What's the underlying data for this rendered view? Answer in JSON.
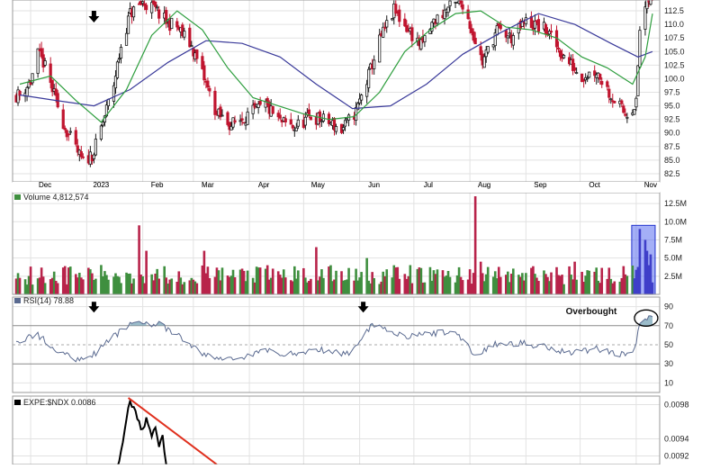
{
  "chart_data": [
    {
      "type": "candlestick",
      "panel": "price",
      "x_months": [
        "Dec",
        "2023",
        "Feb",
        "Mar",
        "Apr",
        "May",
        "Jun",
        "Jul",
        "Aug",
        "Sep",
        "Oct",
        "Nov"
      ],
      "y_ticks": [
        "82.5",
        "85.0",
        "87.5",
        "90.0",
        "92.5",
        "95.0",
        "97.5",
        "100.0",
        "102.5",
        "105.0",
        "107.5",
        "110.0",
        "112.5"
      ],
      "ylim": [
        81.0,
        114.5
      ],
      "series_colors": {
        "up": "#2e7d2e",
        "down": "#c0152f",
        "ma_short": "#2e9e3e",
        "ma_long": "#3a3a9a"
      },
      "annotations": [
        {
          "type": "down-arrow",
          "month": "2023",
          "offset_days": 4,
          "near_value": 113
        }
      ],
      "close_path": [
        [
          "Nov 25 2022",
          97.0
        ],
        [
          "Dec 1 2022",
          99.5
        ],
        [
          "Dec 5 2022",
          104.5
        ],
        [
          "Dec 8 2022",
          103.0
        ],
        [
          "Dec 12 2022",
          99.0
        ],
        [
          "Dec 16 2022",
          95.0
        ],
        [
          "Dec 20 2022",
          91.0
        ],
        [
          "Dec 26 2022",
          87.0
        ],
        [
          "Dec 30 2022",
          84.5
        ],
        [
          "Jan 5 2023",
          86.5
        ],
        [
          "Jan 10 2023",
          92.0
        ],
        [
          "Jan 16 2023",
          99.0
        ],
        [
          "Jan 20 2023",
          106.0
        ],
        [
          "Jan 25 2023",
          112.0
        ],
        [
          "Feb 1 2023",
          114.0
        ],
        [
          "Feb 7 2023",
          113.0
        ],
        [
          "Feb 14 2023",
          110.5
        ],
        [
          "Feb 20 2023",
          109.5
        ],
        [
          "Feb 28 2023",
          106.0
        ],
        [
          "Mar 7 2023",
          100.0
        ],
        [
          "Mar 14 2023",
          93.5
        ],
        [
          "Mar 22 2023",
          91.5
        ],
        [
          "Apr 1 2023",
          93.5
        ],
        [
          "Apr 10 2023",
          95.0
        ],
        [
          "Apr 18 2023",
          92.0
        ],
        [
          "Apr 26 2023",
          91.0
        ],
        [
          "May 5 2023",
          93.0
        ],
        [
          "May 15 2023",
          92.0
        ],
        [
          "May 22 2023",
          90.5
        ],
        [
          "May 30 2023",
          94.0
        ],
        [
          "Jun 5 2023",
          99.5
        ],
        [
          "Jun 12 2023",
          107.0
        ],
        [
          "Jun 20 2023",
          112.5
        ],
        [
          "Jun 28 2023",
          109.0
        ],
        [
          "Jul 5 2023",
          106.0
        ],
        [
          "Jul 12 2023",
          110.5
        ],
        [
          "Jul 20 2023",
          113.0
        ],
        [
          "Jul 28 2023",
          114.0
        ],
        [
          "Aug 3 2023",
          108.0
        ],
        [
          "Aug 8 2023",
          103.0
        ],
        [
          "Aug 16 2023",
          109.0
        ],
        [
          "Aug 24 2023",
          107.5
        ],
        [
          "Sep 1 2023",
          110.5
        ],
        [
          "Sep 12 2023",
          109.0
        ],
        [
          "Sep 22 2023",
          104.0
        ],
        [
          "Oct 2 2023",
          100.5
        ],
        [
          "Oct 10 2023",
          101.5
        ],
        [
          "Oct 18 2023",
          97.0
        ],
        [
          "Oct 26 2023",
          93.5
        ],
        [
          "Nov 1 2023",
          95.5
        ],
        [
          "Nov 3 2023",
          109.0
        ],
        [
          "Nov 6 2023",
          113.0
        ],
        [
          "Nov 8 2023",
          114.5
        ]
      ],
      "ma_short": [
        [
          "Nov 25 2022",
          99.0
        ],
        [
          "Dec 12 2022",
          100.5
        ],
        [
          "Dec 26 2022",
          96.0
        ],
        [
          "Jan 9 2023",
          92.0
        ],
        [
          "Jan 23 2023",
          98.0
        ],
        [
          "Feb 6 2023",
          108.0
        ],
        [
          "Feb 20 2023",
          112.5
        ],
        [
          "Mar 6 2023",
          109.0
        ],
        [
          "Mar 20 2023",
          102.0
        ],
        [
          "Apr 3 2023",
          96.5
        ],
        [
          "Apr 17 2023",
          95.0
        ],
        [
          "May 1 2023",
          93.5
        ],
        [
          "May 15 2023",
          92.5
        ],
        [
          "May 29 2023",
          93.0
        ],
        [
          "Jun 12 2023",
          97.5
        ],
        [
          "Jun 26 2023",
          105.0
        ],
        [
          "Jul 10 2023",
          109.0
        ],
        [
          "Jul 24 2023",
          112.0
        ],
        [
          "Aug 7 2023",
          112.5
        ],
        [
          "Aug 21 2023",
          109.5
        ],
        [
          "Sep 4 2023",
          109.0
        ],
        [
          "Sep 18 2023",
          107.5
        ],
        [
          "Oct 2 2023",
          104.0
        ],
        [
          "Oct 16 2023",
          102.0
        ],
        [
          "Oct 30 2023",
          99.0
        ],
        [
          "Nov 6 2023",
          104.0
        ],
        [
          "Nov 10 2023",
          112.0
        ]
      ],
      "ma_long": [
        [
          "Nov 25 2022",
          97.0
        ],
        [
          "Dec 15 2022",
          96.0
        ],
        [
          "Jan 5 2023",
          95.0
        ],
        [
          "Jan 25 2023",
          98.0
        ],
        [
          "Feb 15 2023",
          103.0
        ],
        [
          "Mar 8 2023",
          107.0
        ],
        [
          "Mar 28 2023",
          106.5
        ],
        [
          "Apr 18 2023",
          104.0
        ],
        [
          "May 8 2023",
          99.0
        ],
        [
          "May 28 2023",
          94.5
        ],
        [
          "Jun 18 2023",
          95.0
        ],
        [
          "Jul 8 2023",
          99.0
        ],
        [
          "Jul 28 2023",
          104.5
        ],
        [
          "Aug 18 2023",
          108.5
        ],
        [
          "Sep 8 2023",
          112.0
        ],
        [
          "Sep 28 2023",
          110.0
        ],
        [
          "Oct 18 2023",
          106.5
        ],
        [
          "Nov 2 2023",
          104.0
        ],
        [
          "Nov 10 2023",
          105.0
        ]
      ]
    },
    {
      "type": "bar",
      "panel": "volume",
      "label": "Volume 4,812,574",
      "y_ticks": [
        "2.5M",
        "5.0M",
        "7.5M",
        "10.0M",
        "12.5M"
      ],
      "ylim": [
        0,
        14.0
      ],
      "series_colors": {
        "up": "#3f8f3f",
        "down": "#b8234a",
        "highlight_fill": "#5a6ef0",
        "highlight_stroke": "#2233cc",
        "recent_bars": "#3f3fc9"
      },
      "highlight_range": [
        "Oct 31 2023",
        "Nov 10 2023"
      ],
      "spikes": [
        [
          "Jan 30 2023",
          9.5
        ],
        [
          "Feb 3 2023",
          6.0
        ],
        [
          "Mar 7 2023",
          6.0
        ],
        [
          "May 8 2023",
          6.5
        ],
        [
          "Jun 5 2023",
          5.0
        ],
        [
          "Aug 4 2023",
          13.5
        ],
        [
          "Aug 7 2023",
          4.5
        ],
        [
          "Sep 28 2023",
          4.5
        ],
        [
          "Nov 3 2023",
          9.0
        ],
        [
          "Nov 6 2023",
          7.5
        ],
        [
          "Nov 7 2023",
          6.0
        ],
        [
          "Nov 9 2023",
          5.5
        ]
      ],
      "base_level": 3.0
    },
    {
      "type": "line",
      "panel": "rsi",
      "label": "RSI(14) 78.88",
      "y_ticks": [
        "10",
        "30",
        "50",
        "70",
        "90"
      ],
      "ylim": [
        0,
        100
      ],
      "reference_lines": [
        30,
        50,
        70
      ],
      "series_colors": {
        "line": "#5a6a90",
        "overbought_fill": "#7aa5b8"
      },
      "annotations": [
        {
          "type": "down-arrow",
          "month": "2023",
          "offset_days": 4
        },
        {
          "type": "down-arrow",
          "month": "Jun",
          "offset_days": 2
        },
        {
          "type": "text",
          "text": "Overbought"
        },
        {
          "type": "ellipse",
          "range": [
            "Oct 31 2023",
            "Nov 10 2023"
          ],
          "value": 78
        }
      ],
      "path": [
        [
          "Nov 25 2022",
          55
        ],
        [
          "Dec 5 2022",
          60
        ],
        [
          "Dec 15 2022",
          45
        ],
        [
          "Dec 25 2022",
          35
        ],
        [
          "Jan 5 2023",
          40
        ],
        [
          "Jan 18 2023",
          62
        ],
        [
          "Jan 28 2023",
          75
        ],
        [
          "Feb 10 2023",
          71
        ],
        [
          "Feb 20 2023",
          60
        ],
        [
          "Mar 5 2023",
          42
        ],
        [
          "Mar 15 2023",
          35
        ],
        [
          "Mar 28 2023",
          37
        ],
        [
          "Apr 10 2023",
          44
        ],
        [
          "Apr 25 2023",
          40
        ],
        [
          "May 10 2023",
          45
        ],
        [
          "May 25 2023",
          40
        ],
        [
          "Jun 1 2023",
          55
        ],
        [
          "Jun 8 2023",
          72
        ],
        [
          "Jun 18 2023",
          65
        ],
        [
          "Jun 28 2023",
          58
        ],
        [
          "Jul 10 2023",
          62
        ],
        [
          "Jul 25 2023",
          63
        ],
        [
          "Aug 4 2023",
          38
        ],
        [
          "Aug 14 2023",
          50
        ],
        [
          "Aug 28 2023",
          52
        ],
        [
          "Sep 12 2023",
          48
        ],
        [
          "Sep 25 2023",
          42
        ],
        [
          "Oct 10 2023",
          46
        ],
        [
          "Oct 25 2023",
          40
        ],
        [
          "Oct 31 2023",
          44
        ],
        [
          "Nov 3 2023",
          72
        ],
        [
          "Nov 6 2023",
          76
        ],
        [
          "Nov 10 2023",
          79
        ]
      ]
    },
    {
      "type": "line",
      "panel": "ratio",
      "label": "EXPE:$NDX 0.0086",
      "y_ticks": [
        "0.0098",
        "0.0094",
        "0.0092"
      ],
      "ylim": [
        0.0091,
        0.0099
      ],
      "series_colors": {
        "line": "#000000",
        "trendline": "#e0301e"
      },
      "trendline": [
        [
          "Jan 24 2023",
          0.00988
        ],
        [
          "Mar 14 2023",
          0.0091
        ]
      ],
      "path": [
        [
          "Jan 18 2023",
          0.0091
        ],
        [
          "Jan 20 2023",
          0.00925
        ],
        [
          "Jan 23 2023",
          0.0096
        ],
        [
          "Jan 25 2023",
          0.00985
        ],
        [
          "Jan 28 2023",
          0.0097
        ],
        [
          "Feb 1 2023",
          0.0095
        ],
        [
          "Feb 3 2023",
          0.00965
        ],
        [
          "Feb 6 2023",
          0.0094
        ],
        [
          "Feb 8 2023",
          0.00955
        ],
        [
          "Feb 10 2023",
          0.0093
        ],
        [
          "Feb 12 2023",
          0.00945
        ],
        [
          "Feb 14 2023",
          0.0091
        ]
      ]
    }
  ]
}
